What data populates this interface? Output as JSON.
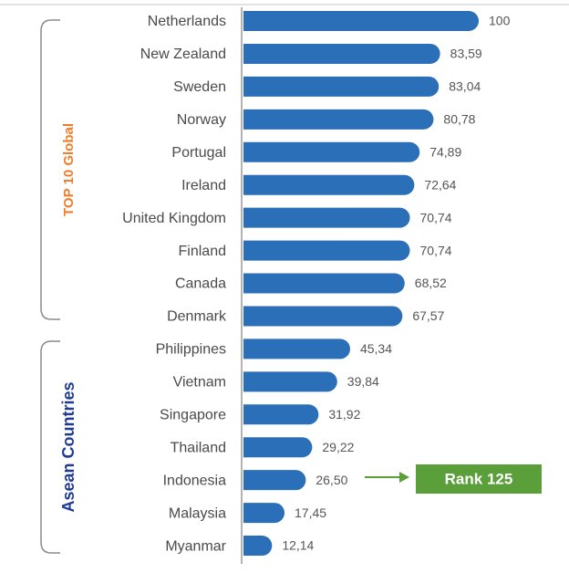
{
  "chart_data": {
    "type": "bar",
    "orientation": "horizontal",
    "categories": [
      "Netherlands",
      "New Zealand",
      "Sweden",
      "Norway",
      "Portugal",
      "Ireland",
      "United Kingdom",
      "Finland",
      "Canada",
      "Denmark",
      "Philippines",
      "Vietnam",
      "Singapore",
      "Thailand",
      "Indonesia",
      "Malaysia",
      "Myanmar"
    ],
    "values": [
      100,
      83.59,
      83.04,
      80.78,
      74.89,
      72.64,
      70.74,
      70.74,
      68.52,
      67.57,
      45.34,
      39.84,
      31.92,
      29.22,
      26.5,
      17.45,
      12.14
    ],
    "value_labels": [
      "100",
      "83,59",
      "83,04",
      "80,78",
      "74,89",
      "72,64",
      "70,74",
      "70,74",
      "68,52",
      "67,57",
      "45,34",
      "39,84",
      "31,92",
      "29,22",
      "26,50",
      "17,45",
      "12,14"
    ],
    "color": "#2a6fb7",
    "xlim": [
      0,
      100
    ],
    "group_labels": [
      "TOP 10 Global",
      "Asean Countries"
    ],
    "annotation": "Rank 125"
  }
}
